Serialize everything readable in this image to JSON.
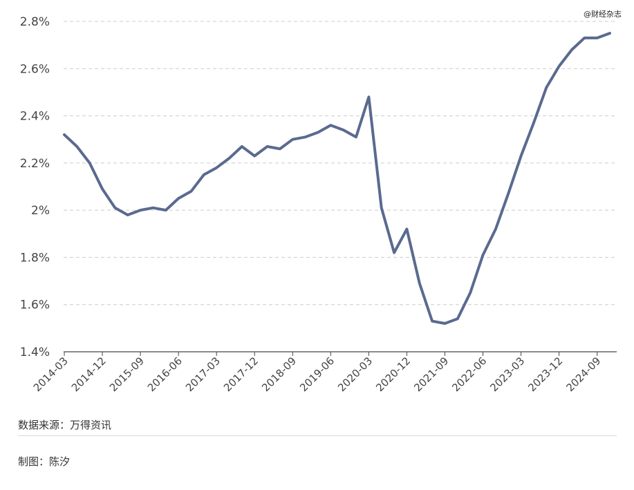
{
  "watermark": "@财经杂志",
  "footer": {
    "source": "数据来源：万得资讯",
    "author": "制图：陈汐"
  },
  "colors": {
    "line": "#5a6a8f",
    "grid": "#cccccc",
    "axis": "#444444"
  },
  "chart_data": {
    "type": "line",
    "title": "",
    "xlabel": "",
    "ylabel": "",
    "grid": true,
    "ylim": [
      1.4,
      2.8
    ],
    "yticks": [
      "1.4%",
      "1.6%",
      "1.8%",
      "2%",
      "2.2%",
      "2.4%",
      "2.6%",
      "2.8%"
    ],
    "ytick_values": [
      1.4,
      1.6,
      1.8,
      2.0,
      2.2,
      2.4,
      2.6,
      2.8
    ],
    "xticks": [
      "2014-03",
      "2014-12",
      "2015-09",
      "2016-06",
      "2017-03",
      "2017-12",
      "2018-09",
      "2019-06",
      "2020-03",
      "2020-12",
      "2021-09",
      "2022-06",
      "2023-03",
      "2023-12",
      "2024-09"
    ],
    "x": [
      "2014-03",
      "2014-06",
      "2014-09",
      "2014-12",
      "2015-03",
      "2015-06",
      "2015-09",
      "2015-12",
      "2016-03",
      "2016-06",
      "2016-09",
      "2016-12",
      "2017-03",
      "2017-06",
      "2017-09",
      "2017-12",
      "2018-03",
      "2018-06",
      "2018-09",
      "2018-12",
      "2019-03",
      "2019-06",
      "2019-09",
      "2019-12",
      "2020-03",
      "2020-06",
      "2020-09",
      "2020-12",
      "2021-03",
      "2021-06",
      "2021-09",
      "2021-12",
      "2022-03",
      "2022-06",
      "2022-09",
      "2022-12",
      "2023-03",
      "2023-06",
      "2023-09",
      "2023-12",
      "2024-03",
      "2024-06",
      "2024-09",
      "2024-12"
    ],
    "series": [
      {
        "values": [
          2.32,
          2.27,
          2.2,
          2.09,
          2.01,
          1.98,
          2.0,
          2.01,
          2.0,
          2.05,
          2.08,
          2.15,
          2.18,
          2.22,
          2.27,
          2.23,
          2.27,
          2.26,
          2.3,
          2.31,
          2.33,
          2.36,
          2.34,
          2.31,
          2.48,
          2.01,
          1.82,
          1.92,
          1.69,
          1.53,
          1.52,
          1.54,
          1.65,
          1.81,
          1.92,
          2.07,
          2.23,
          2.37,
          2.52,
          2.61,
          2.68,
          2.73,
          2.73,
          2.75
        ]
      }
    ]
  }
}
